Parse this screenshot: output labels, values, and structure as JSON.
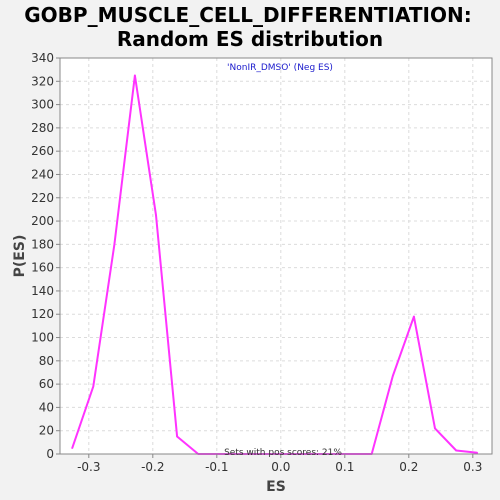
{
  "chart_data": {
    "type": "line",
    "title": "GOBP_MUSCLE_CELL_DIFFERENTIATION:",
    "subtitle": "Random ES distribution",
    "xlabel": "ES",
    "ylabel": "P(ES)",
    "xlim": [
      -0.345,
      0.33
    ],
    "ylim": [
      0,
      340
    ],
    "xticks": [
      -0.3,
      -0.2,
      -0.1,
      0.0,
      0.1,
      0.2,
      0.3
    ],
    "xtick_labels": [
      "-0.3",
      "-0.2",
      "-0.1",
      "0.0",
      "0.1",
      "0.2",
      "0.3"
    ],
    "yticks": [
      0,
      20,
      40,
      60,
      80,
      100,
      120,
      140,
      160,
      180,
      200,
      220,
      240,
      260,
      280,
      300,
      320,
      340
    ],
    "grid": true,
    "series": [
      {
        "color": "#ff33ff",
        "x": [
          -0.326,
          -0.293,
          -0.26,
          -0.228,
          -0.195,
          -0.162,
          -0.129,
          -0.096,
          -0.063,
          -0.031,
          0.002,
          0.035,
          0.068,
          0.101,
          0.134,
          0.142,
          0.175,
          0.208,
          0.241,
          0.274,
          0.307
        ],
        "y": [
          5,
          58,
          180,
          325,
          205,
          15,
          0,
          0,
          0,
          0,
          0,
          0,
          0,
          0,
          0,
          0,
          67,
          118,
          22,
          3,
          1
        ]
      }
    ],
    "annotations": {
      "top": "'NonIR_DMSO' (Neg ES)",
      "bottom": "Sets with pos scores: 21%"
    }
  }
}
